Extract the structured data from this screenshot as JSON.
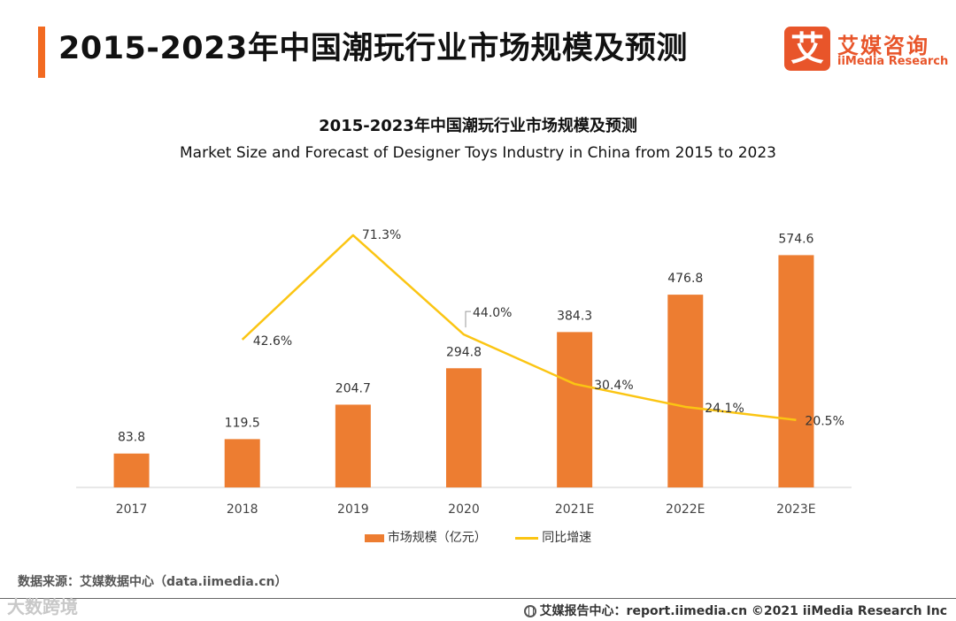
{
  "page": {
    "title": "2015-2023年中国潮玩行业市场规模及预测"
  },
  "logo": {
    "mark": "艾",
    "name_cn": "艾媒咨询",
    "name_en": "iiMedia Research"
  },
  "chart_data": {
    "type": "bar",
    "title": "2015-2023年中国潮玩行业市场规模及预测",
    "subtitle": "Market Size and Forecast of Designer Toys Industry in China from 2015 to 2023",
    "categories": [
      "2017",
      "2018",
      "2019",
      "2020",
      "2021E",
      "2022E",
      "2023E"
    ],
    "series": [
      {
        "name": "市场规模（亿元）",
        "type": "bar",
        "values": [
          83.8,
          119.5,
          204.7,
          294.8,
          384.3,
          476.8,
          574.6
        ],
        "labels": [
          "83.8",
          "119.5",
          "204.7",
          "294.8",
          "384.3",
          "476.8",
          "574.6"
        ],
        "color": "#ed7d31"
      },
      {
        "name": "同比增速",
        "type": "line",
        "values": [
          null,
          42.6,
          71.3,
          44.0,
          30.4,
          24.1,
          20.5
        ],
        "labels": [
          "",
          "42.6%",
          "71.3%",
          "44.0%",
          "30.4%",
          "24.1%",
          "20.5%"
        ],
        "color": "#fbc513"
      }
    ],
    "grid": false,
    "legend_position": "bottom"
  },
  "source": {
    "text": "数据来源：艾媒数据中心（data.iimedia.cn）"
  },
  "footer": {
    "watermark": "大数跨境",
    "report_text": "艾媒报告中心：report.iimedia.cn ©2021 iiMedia Research Inc"
  }
}
